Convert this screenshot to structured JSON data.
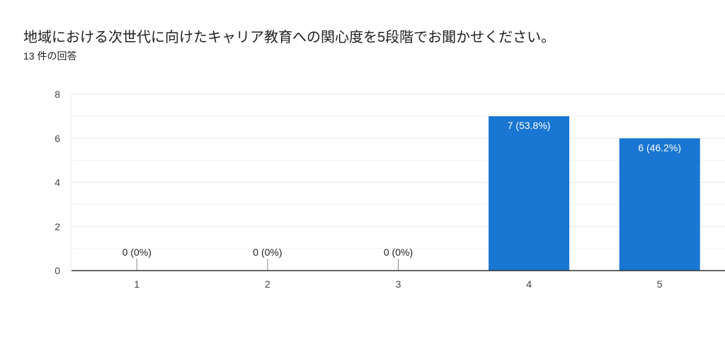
{
  "question": "地域における次世代に向けたキャリア教育への関心度を5段階でお聞かせください。",
  "response_count": "13 件の回答",
  "chart_data": {
    "type": "bar",
    "categories": [
      "1",
      "2",
      "3",
      "4",
      "5"
    ],
    "values": [
      0,
      0,
      0,
      7,
      6
    ],
    "data_labels": [
      "0 (0%)",
      "0 (0%)",
      "0 (0%)",
      "7 (53.8%)",
      "6 (46.2%)"
    ],
    "yticks": [
      "0",
      "2",
      "4",
      "6",
      "8"
    ],
    "ylim": [
      0,
      8
    ],
    "grid": true,
    "bar_color": "#1976d2"
  }
}
